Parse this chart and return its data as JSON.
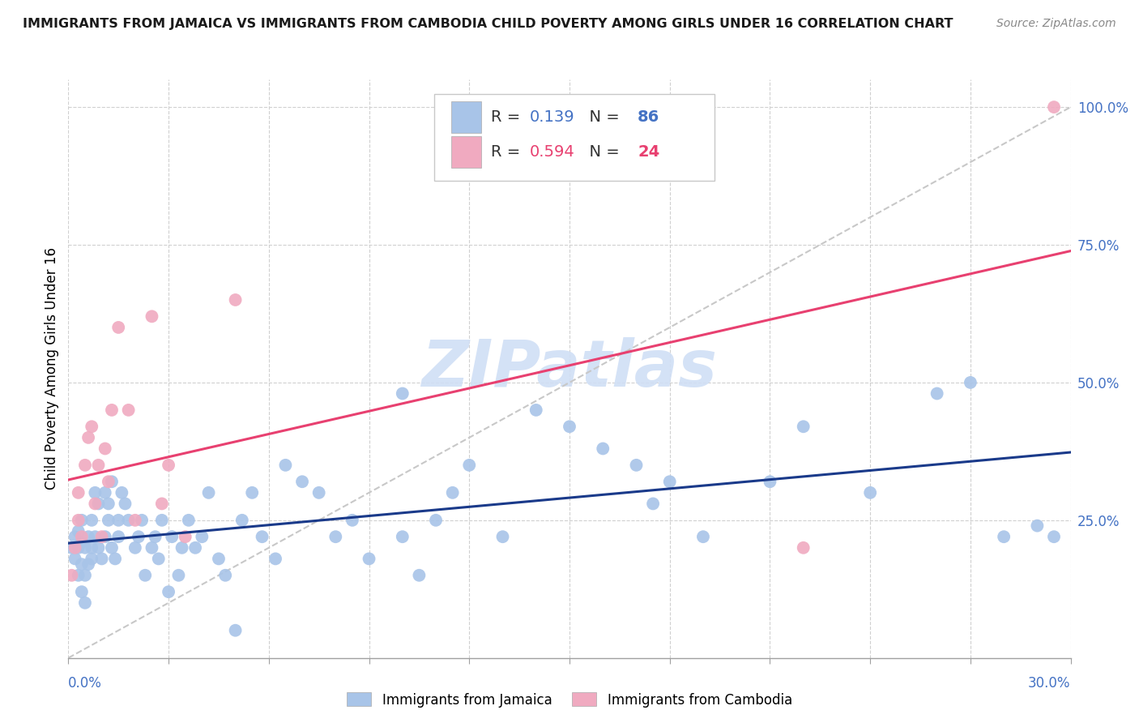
{
  "title": "IMMIGRANTS FROM JAMAICA VS IMMIGRANTS FROM CAMBODIA CHILD POVERTY AMONG GIRLS UNDER 16 CORRELATION CHART",
  "source": "Source: ZipAtlas.com",
  "ylabel": "Child Poverty Among Girls Under 16",
  "ylabel_right_ticks": [
    "100.0%",
    "75.0%",
    "50.0%",
    "25.0%"
  ],
  "ylabel_right_vals": [
    1.0,
    0.75,
    0.5,
    0.25
  ],
  "legend1_R": "0.139",
  "legend1_N": "86",
  "legend2_R": "0.594",
  "legend2_N": "24",
  "jamaica_color": "#a8c4e8",
  "cambodia_color": "#f0aac0",
  "jamaica_line_color": "#1a3a8a",
  "cambodia_line_color": "#e84070",
  "diagonal_color": "#c8c8c8",
  "watermark_color": "#d0dff5",
  "xlim": [
    0.0,
    0.3
  ],
  "ylim": [
    0.0,
    1.05
  ],
  "jamaica_x": [
    0.001,
    0.002,
    0.002,
    0.003,
    0.003,
    0.003,
    0.004,
    0.004,
    0.004,
    0.004,
    0.005,
    0.005,
    0.005,
    0.006,
    0.006,
    0.007,
    0.007,
    0.007,
    0.008,
    0.008,
    0.009,
    0.009,
    0.01,
    0.011,
    0.011,
    0.012,
    0.012,
    0.013,
    0.013,
    0.014,
    0.015,
    0.015,
    0.016,
    0.017,
    0.018,
    0.02,
    0.021,
    0.022,
    0.023,
    0.025,
    0.026,
    0.027,
    0.028,
    0.03,
    0.031,
    0.033,
    0.034,
    0.036,
    0.038,
    0.04,
    0.042,
    0.045,
    0.047,
    0.05,
    0.052,
    0.055,
    0.058,
    0.062,
    0.065,
    0.07,
    0.075,
    0.08,
    0.085,
    0.09,
    0.1,
    0.105,
    0.11,
    0.115,
    0.12,
    0.13,
    0.14,
    0.15,
    0.16,
    0.17,
    0.19,
    0.21,
    0.22,
    0.24,
    0.26,
    0.27,
    0.28,
    0.29,
    0.295,
    0.1,
    0.175,
    0.18
  ],
  "jamaica_y": [
    0.2,
    0.18,
    0.22,
    0.15,
    0.2,
    0.23,
    0.12,
    0.17,
    0.21,
    0.25,
    0.1,
    0.15,
    0.2,
    0.22,
    0.17,
    0.18,
    0.2,
    0.25,
    0.3,
    0.22,
    0.2,
    0.28,
    0.18,
    0.22,
    0.3,
    0.28,
    0.25,
    0.2,
    0.32,
    0.18,
    0.25,
    0.22,
    0.3,
    0.28,
    0.25,
    0.2,
    0.22,
    0.25,
    0.15,
    0.2,
    0.22,
    0.18,
    0.25,
    0.12,
    0.22,
    0.15,
    0.2,
    0.25,
    0.2,
    0.22,
    0.3,
    0.18,
    0.15,
    0.05,
    0.25,
    0.3,
    0.22,
    0.18,
    0.35,
    0.32,
    0.3,
    0.22,
    0.25,
    0.18,
    0.48,
    0.15,
    0.25,
    0.3,
    0.35,
    0.22,
    0.45,
    0.42,
    0.38,
    0.35,
    0.22,
    0.32,
    0.42,
    0.3,
    0.48,
    0.5,
    0.22,
    0.24,
    0.22,
    0.22,
    0.28,
    0.32
  ],
  "cambodia_x": [
    0.001,
    0.002,
    0.003,
    0.003,
    0.004,
    0.005,
    0.006,
    0.007,
    0.008,
    0.009,
    0.01,
    0.011,
    0.012,
    0.013,
    0.015,
    0.018,
    0.02,
    0.025,
    0.028,
    0.03,
    0.035,
    0.05,
    0.22,
    0.295
  ],
  "cambodia_y": [
    0.15,
    0.2,
    0.25,
    0.3,
    0.22,
    0.35,
    0.4,
    0.42,
    0.28,
    0.35,
    0.22,
    0.38,
    0.32,
    0.45,
    0.6,
    0.45,
    0.25,
    0.62,
    0.28,
    0.35,
    0.22,
    0.65,
    0.2,
    1.0
  ]
}
